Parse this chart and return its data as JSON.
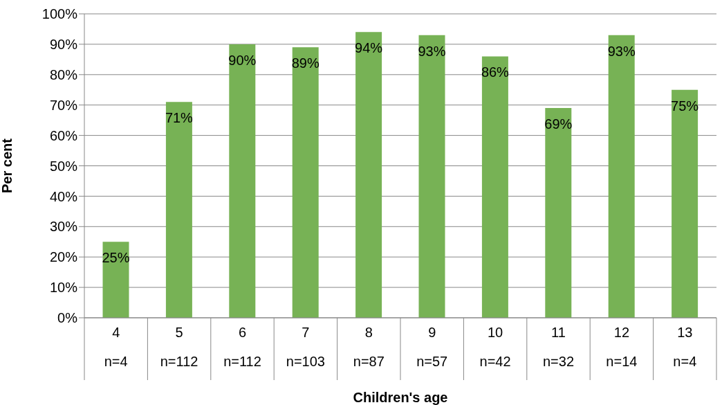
{
  "chart_data": {
    "type": "bar",
    "xlabel": "Children's age",
    "ylabel": "Per cent",
    "categories": [
      "4\nn=4",
      "5\nn=112",
      "6\nn=112",
      "7\nn=103",
      "8\nn=87",
      "9\nn=57",
      "10\nn=42",
      "11\nn=32",
      "12\nn=14",
      "13\nn=4"
    ],
    "values": [
      25,
      71,
      90,
      89,
      94,
      93,
      86,
      69,
      93,
      75
    ],
    "value_labels": [
      "25%",
      "71%",
      "90%",
      "89%",
      "94%",
      "93%",
      "86%",
      "69%",
      "93%",
      "75%"
    ],
    "color": "#77b255",
    "ylim": [
      0,
      100
    ],
    "yticks": [
      {
        "value": 0,
        "label": "0%"
      },
      {
        "value": 10,
        "label": "10%"
      },
      {
        "value": 20,
        "label": "20%"
      },
      {
        "value": 30,
        "label": "30%"
      },
      {
        "value": 40,
        "label": "40%"
      },
      {
        "value": 50,
        "label": "50%"
      },
      {
        "value": 60,
        "label": "60%"
      },
      {
        "value": 70,
        "label": "70%"
      },
      {
        "value": 80,
        "label": "80%"
      },
      {
        "value": 90,
        "label": "90%"
      },
      {
        "value": 100,
        "label": "100%"
      }
    ],
    "grid": "y"
  }
}
